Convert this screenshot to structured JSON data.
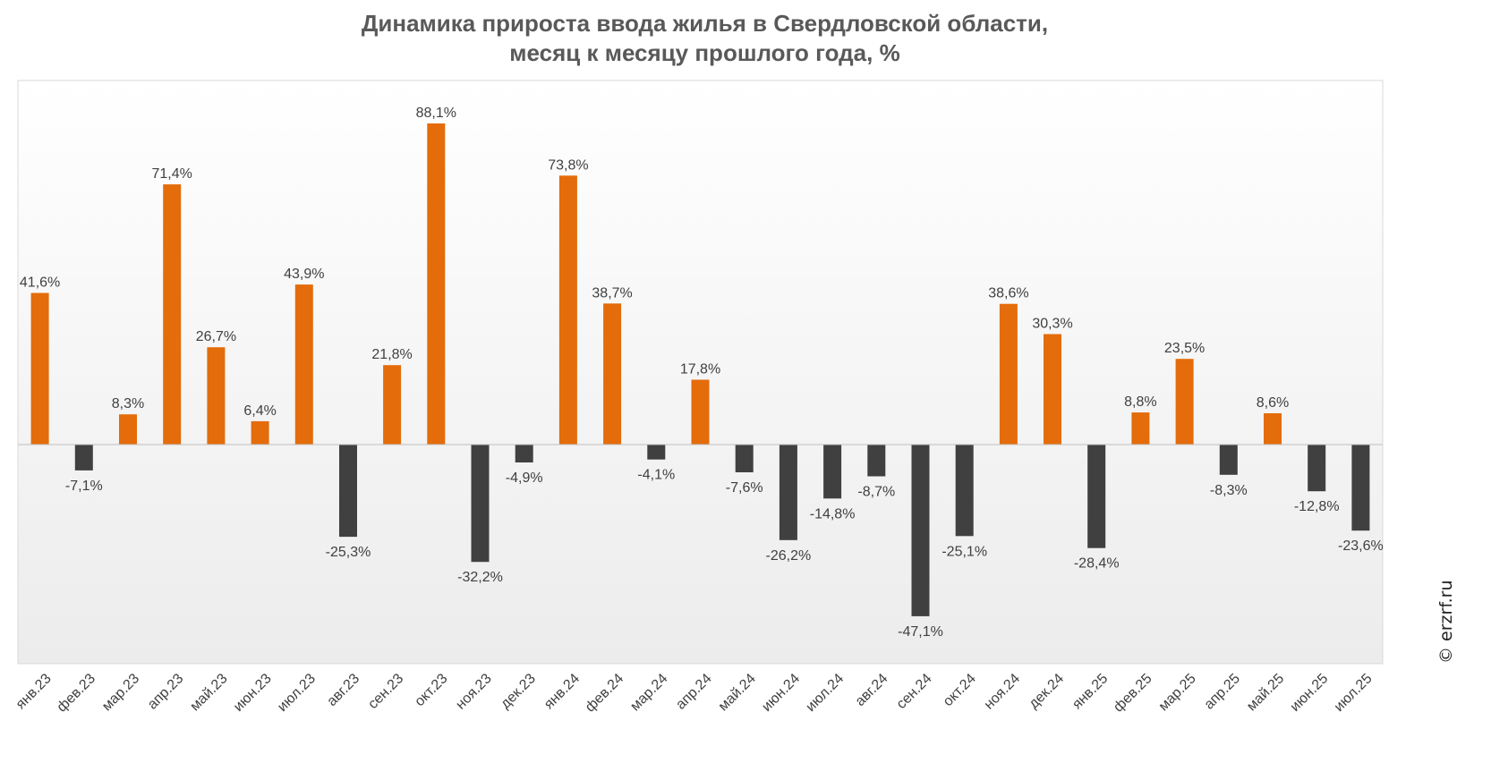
{
  "title_lines": [
    "Динамика прироста ввода жилья в Свердловской области,",
    "месяц к месяцу прошлого года, %"
  ],
  "copyright": "© erzrf.ru",
  "colors": {
    "positive": "#E46C0A",
    "negative": "#404040",
    "title": "#595959",
    "labels": "#404040",
    "plot_border": "#D9D9D9"
  },
  "chart_data": {
    "type": "bar",
    "title": "Динамика прироста ввода жилья в Свердловской области, месяц к месяцу прошлого года, %",
    "categories": [
      "янв.23",
      "фев.23",
      "мар.23",
      "апр.23",
      "май.23",
      "июн.23",
      "июл.23",
      "авг.23",
      "сен.23",
      "окт.23",
      "ноя.23",
      "дек.23",
      "янв.24",
      "фев.24",
      "мар.24",
      "апр.24",
      "май.24",
      "июн.24",
      "июл.24",
      "авг.24",
      "сен.24",
      "окт.24",
      "ноя.24",
      "дек.24",
      "янв.25",
      "фев.25",
      "мар.25",
      "апр.25",
      "май.25",
      "июн.25",
      "июл.25"
    ],
    "values": [
      41.6,
      -7.1,
      8.3,
      71.4,
      26.7,
      6.4,
      43.9,
      -25.3,
      21.8,
      88.1,
      -32.2,
      -4.9,
      73.8,
      38.7,
      -4.1,
      17.8,
      -7.6,
      -26.2,
      -14.8,
      -8.7,
      -47.1,
      -25.1,
      38.6,
      30.3,
      -28.4,
      8.8,
      23.5,
      -8.3,
      8.6,
      -12.8,
      -23.6
    ],
    "data_labels": [
      "41,6%",
      "-7,1%",
      "8,3%",
      "71,4%",
      "26,7%",
      "6,4%",
      "43,9%",
      "-25,3%",
      "21,8%",
      "88,1%",
      "-32,2%",
      "-4,9%",
      "73,8%",
      "38,7%",
      "-4,1%",
      "17,8%",
      "-7,6%",
      "-26,2%",
      "-14,8%",
      "-8,7%",
      "-47,1%",
      "-25,1%",
      "38,6%",
      "30,3%",
      "-28,4%",
      "8,8%",
      "23,5%",
      "-8,3%",
      "8,6%",
      "-12,8%",
      "-23,6%"
    ],
    "ylim": [
      -60,
      97
    ],
    "grid": false,
    "legend": "none",
    "xlabel": "",
    "ylabel": ""
  }
}
